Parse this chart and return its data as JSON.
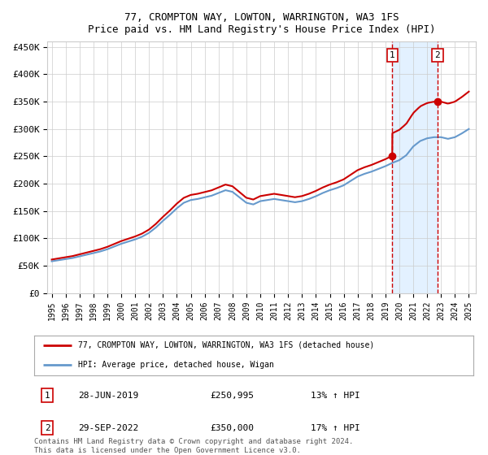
{
  "title": "77, CROMPTON WAY, LOWTON, WARRINGTON, WA3 1FS",
  "subtitle": "Price paid vs. HM Land Registry's House Price Index (HPI)",
  "ylabel_ticks": [
    "£0",
    "£50K",
    "£100K",
    "£150K",
    "£200K",
    "£250K",
    "£300K",
    "£350K",
    "£400K",
    "£450K"
  ],
  "ytick_values": [
    0,
    50000,
    100000,
    150000,
    200000,
    250000,
    300000,
    350000,
    400000,
    450000
  ],
  "ylim": [
    0,
    460000
  ],
  "xlim_start": 1994.7,
  "xlim_end": 2025.5,
  "xtick_years": [
    1995,
    1996,
    1997,
    1998,
    1999,
    2000,
    2001,
    2002,
    2003,
    2004,
    2005,
    2006,
    2007,
    2008,
    2009,
    2010,
    2011,
    2012,
    2013,
    2014,
    2015,
    2016,
    2017,
    2018,
    2019,
    2020,
    2021,
    2022,
    2023,
    2024,
    2025
  ],
  "hpi_color": "#6699cc",
  "price_color": "#cc0000",
  "marker1_date": 2019.49,
  "marker1_price": 250995,
  "marker2_date": 2022.75,
  "marker2_price": 350000,
  "marker1_label": "28-JUN-2019",
  "marker1_amount": "£250,995",
  "marker1_hpi": "13% ↑ HPI",
  "marker2_label": "29-SEP-2022",
  "marker2_amount": "£350,000",
  "marker2_hpi": "17% ↑ HPI",
  "legend_line1": "77, CROMPTON WAY, LOWTON, WARRINGTON, WA3 1FS (detached house)",
  "legend_line2": "HPI: Average price, detached house, Wigan",
  "footnote": "Contains HM Land Registry data © Crown copyright and database right 2024.\nThis data is licensed under the Open Government Licence v3.0.",
  "bg_color": "#ffffff",
  "grid_color": "#cccccc",
  "shade_color": "#ddeeff"
}
